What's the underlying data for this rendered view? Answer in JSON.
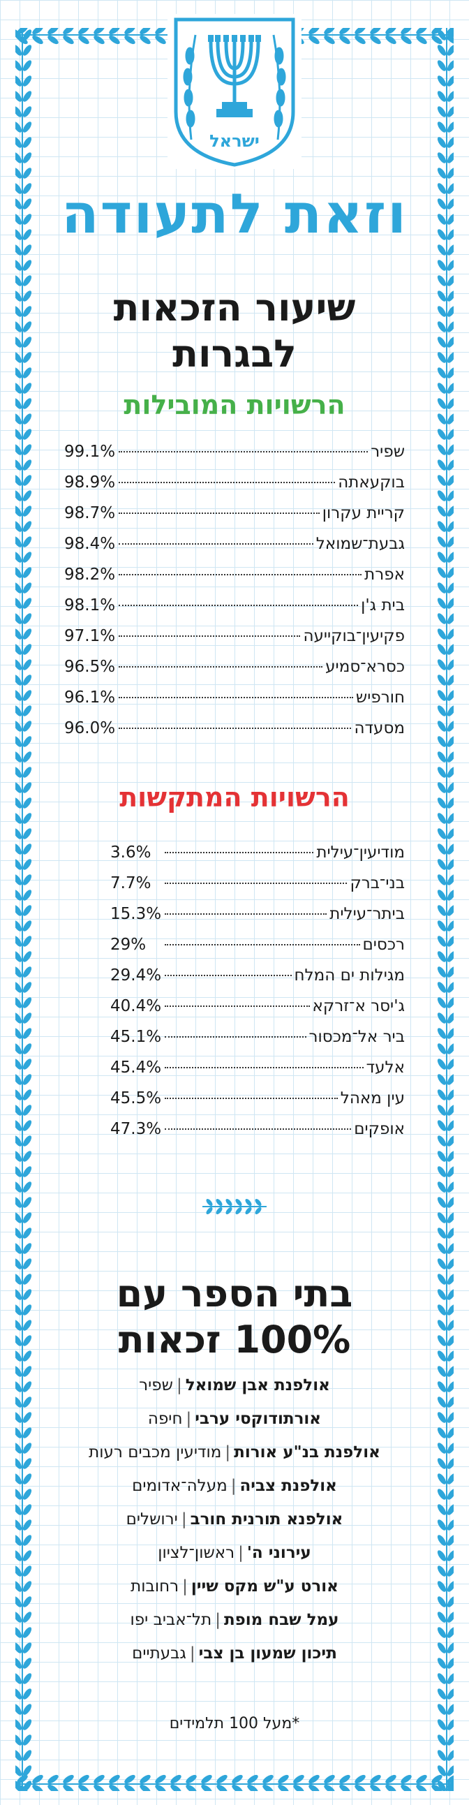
{
  "header": {
    "emblem_icon": "state-of-israel-emblem-icon",
    "emblem_text": "ישראל",
    "title": "וזאת לתעודה",
    "subtitle_line1": "שיעור הזכאות",
    "subtitle_line2": "לבגרות"
  },
  "colors": {
    "accent_blue": "#2ea6da",
    "leading_green": "#46b049",
    "lagging_red": "#e43235",
    "grid_line": "#cfe6f3"
  },
  "leading": {
    "title": "הרשויות המובילות",
    "items": [
      {
        "name": "שפיר",
        "pct": "99.1%"
      },
      {
        "name": "בוקעאתה",
        "pct": "98.9%"
      },
      {
        "name": "קריית עקרון",
        "pct": "98.7%"
      },
      {
        "name": "גבעת־שמואל",
        "pct": "98.4%"
      },
      {
        "name": "אפרת",
        "pct": "98.2%"
      },
      {
        "name": "בית ג'ן",
        "pct": "98.1%"
      },
      {
        "name": "פקיעין־בוקייעה",
        "pct": "97.1%"
      },
      {
        "name": "כסרא־סמיע",
        "pct": "96.5%"
      },
      {
        "name": "חורפיש",
        "pct": "96.1%"
      },
      {
        "name": "מסעדה",
        "pct": "96.0%"
      }
    ]
  },
  "lagging": {
    "title": "הרשויות המתקשות",
    "items": [
      {
        "name": "מודיעין־עילית",
        "pct": "3.6%"
      },
      {
        "name": "בני־ברק",
        "pct": "7.7%"
      },
      {
        "name": "ביתר־עילית",
        "pct": "15.3%"
      },
      {
        "name": "רכסים",
        "pct": "29%"
      },
      {
        "name": "מגילות ים המלח",
        "pct": "29.4%"
      },
      {
        "name": "ג'יסר א־זרקא",
        "pct": "40.4%"
      },
      {
        "name": "ביר אל־מכסור",
        "pct": "45.1%"
      },
      {
        "name": "אלעד",
        "pct": "45.4%"
      },
      {
        "name": "עין מאהל",
        "pct": "45.5%"
      },
      {
        "name": "אופקים",
        "pct": "47.3%"
      }
    ]
  },
  "divider_icon": "laurel-branch-icon",
  "schools": {
    "title_line1": "בתי הספר עם",
    "title_line2": "100% זכאות",
    "items": [
      {
        "name": "אולפנת אבן שמואל",
        "city": "שפיר"
      },
      {
        "name": "אורתודוקסי ערבי",
        "city": "חיפה"
      },
      {
        "name": "אולפנת בנ\"ע אורות",
        "city": "מודיעין מכבים רעות"
      },
      {
        "name": "אולפנת צביה",
        "city": "מעלה־אדומים"
      },
      {
        "name": "אולפנא תורנית חורב",
        "city": "ירושלים"
      },
      {
        "name": "עירוני ה'",
        "city": "ראשון־לציון"
      },
      {
        "name": "אורט ע\"ש מקס שיין",
        "city": "רחובות"
      },
      {
        "name": "עמל שבח מופת",
        "city": "תל־אביב יפו"
      },
      {
        "name": "תיכון שמעון בן צבי",
        "city": "גבעתיים"
      }
    ],
    "separator": "|",
    "footnote": "*מעל 100 תלמידים"
  }
}
